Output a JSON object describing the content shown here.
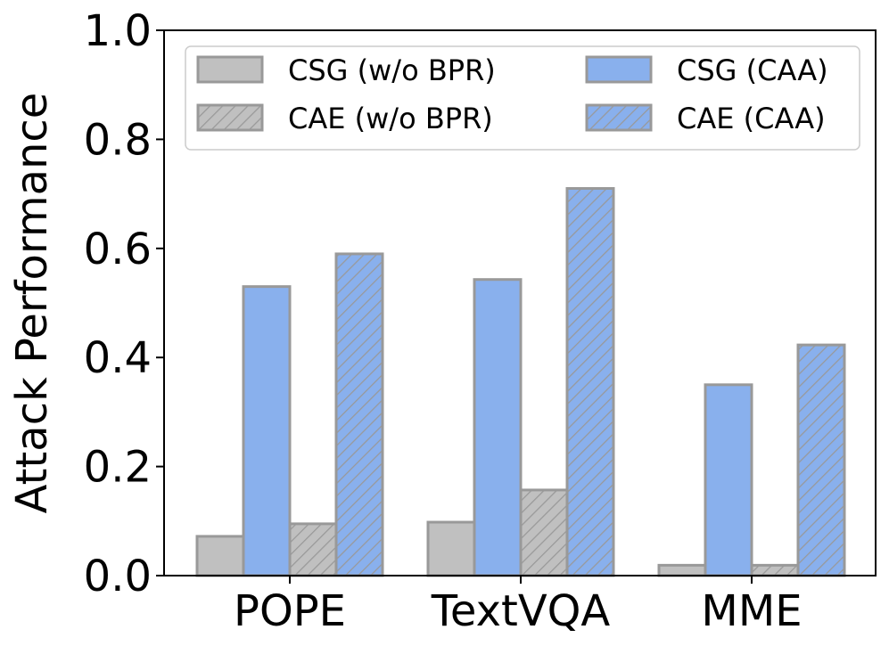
{
  "chart_data": {
    "type": "bar",
    "title": "",
    "xlabel": "",
    "ylabel": "Attack Performance",
    "categories": [
      "POPE",
      "TextVQA",
      "MME"
    ],
    "ylim": [
      0,
      1.0
    ],
    "yticks": [
      "0.0",
      "0.2",
      "0.4",
      "0.6",
      "0.8",
      "1.0"
    ],
    "grid": false,
    "legend_position": "top",
    "series": [
      {
        "name": "CSG (w/o BPR)",
        "values": [
          0.072,
          0.098,
          0.019
        ],
        "color": "#c0c0c0",
        "hatch": false
      },
      {
        "name": "CSG (CAA)",
        "values": [
          0.53,
          0.543,
          0.35
        ],
        "color": "#89b0ed",
        "hatch": false
      },
      {
        "name": "CAE (w/o BPR)",
        "values": [
          0.095,
          0.157,
          0.019
        ],
        "color": "#c0c0c0",
        "hatch": true
      },
      {
        "name": "CAE (CAA)",
        "values": [
          0.59,
          0.71,
          0.423
        ],
        "color": "#89b0ed",
        "hatch": true
      }
    ],
    "edge_color": "#999999"
  }
}
